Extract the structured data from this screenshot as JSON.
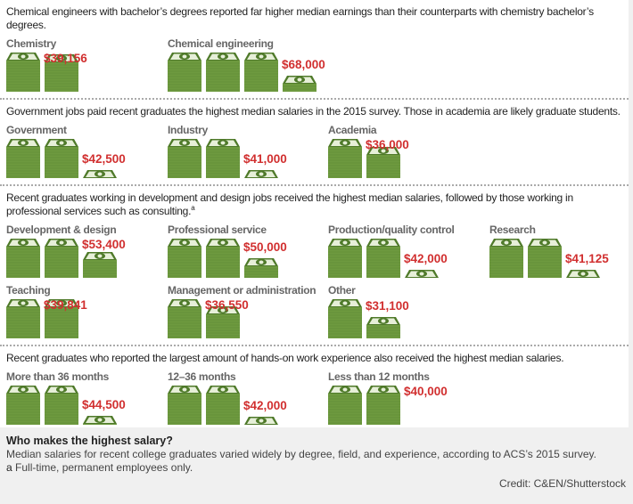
{
  "chart_data": {
    "type": "pictograph",
    "unit_note": "each full stack of bills represents roughly $20,000",
    "colors": {
      "money": "#6e9a3f",
      "money_dark": "#4f7a2a",
      "value": "#d12f2f",
      "label": "#666666"
    },
    "sections": [
      {
        "title": "Chemical engineers with bachelor’s degrees reported far higher median earnings than their counterparts with chemistry bachelor’s degrees.",
        "items": [
          {
            "label": "Chemistry",
            "value": 39156,
            "value_label": "$39,156"
          },
          {
            "label": "Chemical engineering",
            "value": 68000,
            "value_label": "$68,000"
          }
        ]
      },
      {
        "title": "Government jobs paid recent graduates the highest median salaries in the 2015 survey. Those in academia are likely graduate students.",
        "items": [
          {
            "label": "Government",
            "value": 42500,
            "value_label": "$42,500"
          },
          {
            "label": "Industry",
            "value": 41000,
            "value_label": "$41,000"
          },
          {
            "label": "Academia",
            "value": 36000,
            "value_label": "$36,000"
          }
        ]
      },
      {
        "title": "Recent graduates working in development and design jobs received the highest median salaries, followed by those working in professional services such as consulting.",
        "title_footnote": "a",
        "items": [
          {
            "label": "Development & design",
            "value": 53400,
            "value_label": "$53,400"
          },
          {
            "label": "Professional service",
            "value": 50000,
            "value_label": "$50,000"
          },
          {
            "label": "Production/quality control",
            "value": 42000,
            "value_label": "$42,000"
          },
          {
            "label": "Research",
            "value": 41125,
            "value_label": "$41,125"
          },
          {
            "label": "Teaching",
            "value": 39841,
            "value_label": "$39,841"
          },
          {
            "label": "Management or administration",
            "value": 36550,
            "value_label": "$36,550"
          },
          {
            "label": "Other",
            "value": 31100,
            "value_label": "$31,100"
          }
        ]
      },
      {
        "title": "Recent graduates who reported the largest amount of hands-on work experience also received the highest median salaries.",
        "items": [
          {
            "label": "More than 36 months",
            "value": 44500,
            "value_label": "$44,500"
          },
          {
            "label": "12–36 months",
            "value": 42000,
            "value_label": "$42,000"
          },
          {
            "label": "Less than 12 months",
            "value": 40000,
            "value_label": "$40,000"
          }
        ]
      }
    ]
  },
  "caption": {
    "title": "Who makes the highest salary?",
    "text": "Median salaries for recent college graduates varied widely by degree, field, and experience, according to ACS’s 2015 survey.",
    "footnote_marker": "a",
    "footnote": "Full-time, permanent employees only.",
    "credit": "Credit: C&EN/Shutterstock"
  }
}
